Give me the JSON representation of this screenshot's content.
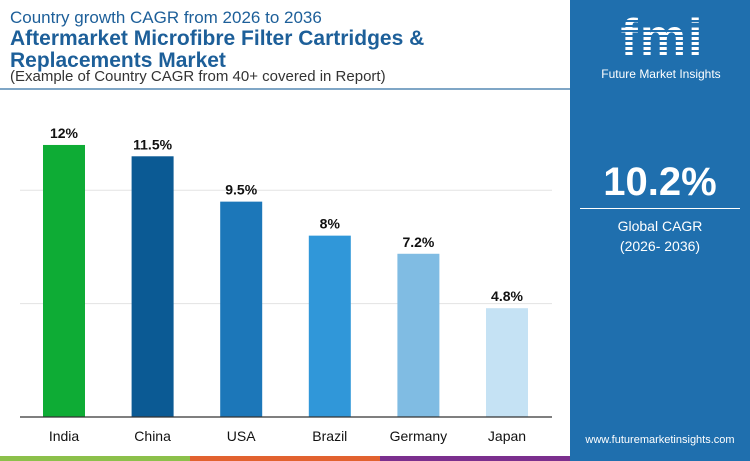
{
  "header": {
    "subtitle": "Country growth CAGR from 2026 to 2036",
    "title": "Aftermarket Microfibre Filter Cartridges & Replacements Market",
    "note": "(Example of Country CAGR from 40+ covered in Report)"
  },
  "panel": {
    "logo": "fmi",
    "brand": "Future Market Insights",
    "global_value": "10.2%",
    "global_label": "Global CAGR",
    "global_period": "(2026- 2036)",
    "url": "www.futuremarketinsights.com"
  },
  "colors": {
    "panel": "#1f6fae",
    "strip": [
      "#8cc04a",
      "#e2622f",
      "#7b2f8e"
    ]
  },
  "chart_data": {
    "type": "bar",
    "categories": [
      "India",
      "China",
      "USA",
      "Brazil",
      "Germany",
      "Japan"
    ],
    "values": [
      12,
      11.5,
      9.5,
      8,
      7.2,
      4.8
    ],
    "labels": [
      "12%",
      "11.5%",
      "9.5%",
      "8%",
      "7.2%",
      "4.8%"
    ],
    "colors": [
      "#0eac35",
      "#0b5a94",
      "#1c77b9",
      "#3097d9",
      "#80bce3",
      "#c5e2f4"
    ],
    "ylim": [
      0,
      12
    ],
    "gridlines": [
      5,
      10
    ],
    "xlabel": "",
    "ylabel": ""
  }
}
